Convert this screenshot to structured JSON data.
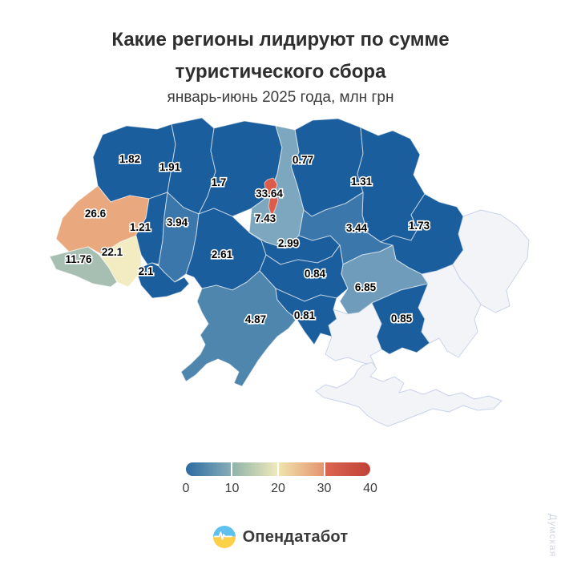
{
  "header": {
    "title_line1": "Какие регионы лидируют по сумме",
    "title_line2": "туристического сбора",
    "subtitle": "январь-июнь 2025 года, млн грн"
  },
  "chart_data": {
    "type": "heatmap",
    "variant": "choropleth-map-ukraine",
    "title": "Какие регионы лидируют по сумме туристического сбора",
    "subtitle": "январь-июнь 2025 года, млн грн",
    "unit": "млн грн",
    "period": "январь-июнь 2025",
    "colorbar": {
      "min": 0,
      "max": 40,
      "ticks": [
        0,
        10,
        20,
        30,
        40
      ],
      "scale_colors": [
        "#2c6ba2",
        "#8fb3ab",
        "#efe9ba",
        "#e5946e",
        "#c04038"
      ]
    },
    "regions": [
      {
        "id": "volyn",
        "label": "1.82",
        "value": 1.82,
        "fill": "#1a5e9e"
      },
      {
        "id": "rivne",
        "label": "1.91",
        "value": 1.91,
        "fill": "#1a5e9e"
      },
      {
        "id": "zhytomyr",
        "label": "1.7",
        "value": 1.7,
        "fill": "#1a5e9e"
      },
      {
        "id": "chernihiv",
        "label": "0.77",
        "value": 0.77,
        "fill": "#1a5e9e"
      },
      {
        "id": "sumy",
        "label": "1.31",
        "value": 1.31,
        "fill": "#1a5e9e"
      },
      {
        "id": "lviv",
        "label": "26.6",
        "value": 26.6,
        "fill": "#e9a87d"
      },
      {
        "id": "ternopil",
        "label": "1.21",
        "value": 1.21,
        "fill": "#1a5e9e"
      },
      {
        "id": "khmelnytskyi",
        "label": "3.94",
        "value": 3.94,
        "fill": "#3b77aa"
      },
      {
        "id": "zakarpattia",
        "label": "11.76",
        "value": 11.76,
        "fill": "#a6bfb2"
      },
      {
        "id": "ivano-frankivsk",
        "label": "22.1",
        "value": 22.1,
        "fill": "#f3ecc2"
      },
      {
        "id": "chernivtsi",
        "label": "2.1",
        "value": 2.1,
        "fill": "#1a5e9e"
      },
      {
        "id": "vinnytsia",
        "label": "2.61",
        "value": 2.61,
        "fill": "#1a5e9e"
      },
      {
        "id": "kyiv-oblast",
        "label": "7.43",
        "value": 7.43,
        "fill": "#7ca7be"
      },
      {
        "id": "kyiv-city",
        "label": "33.64",
        "value": 33.64,
        "fill": "#dd5b49"
      },
      {
        "id": "cherkasy",
        "label": "2.99",
        "value": 2.99,
        "fill": "#1a5e9e"
      },
      {
        "id": "poltava",
        "label": "3.44",
        "value": 3.44,
        "fill": "#3b77aa"
      },
      {
        "id": "kharkiv",
        "label": "1.73",
        "value": 1.73,
        "fill": "#1a5e9e"
      },
      {
        "id": "kirovohrad",
        "label": "0.84",
        "value": 0.84,
        "fill": "#1a5e9e"
      },
      {
        "id": "dnipro",
        "label": "6.85",
        "value": 6.85,
        "fill": "#6f9cba"
      },
      {
        "id": "odesa",
        "label": "4.87",
        "value": 4.87,
        "fill": "#4e86ad"
      },
      {
        "id": "mykolaiv",
        "label": "0.81",
        "value": 0.81,
        "fill": "#1a5e9e"
      },
      {
        "id": "zaporizhzhia",
        "label": "0.85",
        "value": 0.85,
        "fill": "#1a5e9e"
      }
    ],
    "no_data_regions": [
      {
        "id": "luhansk"
      },
      {
        "id": "donetsk"
      },
      {
        "id": "kherson"
      },
      {
        "id": "crimea"
      }
    ],
    "no_data_fill": "#f2f4f8",
    "no_data_border": "#c9d3ea"
  },
  "legend": {
    "ticks": [
      "0",
      "10",
      "20",
      "30",
      "40"
    ]
  },
  "footer": {
    "brand": "Опендатабот",
    "logo_colors": {
      "top": "#5ec1ee",
      "bottom": "#fdd04a",
      "pulse": "#ffffff"
    }
  },
  "watermark": "Думская"
}
